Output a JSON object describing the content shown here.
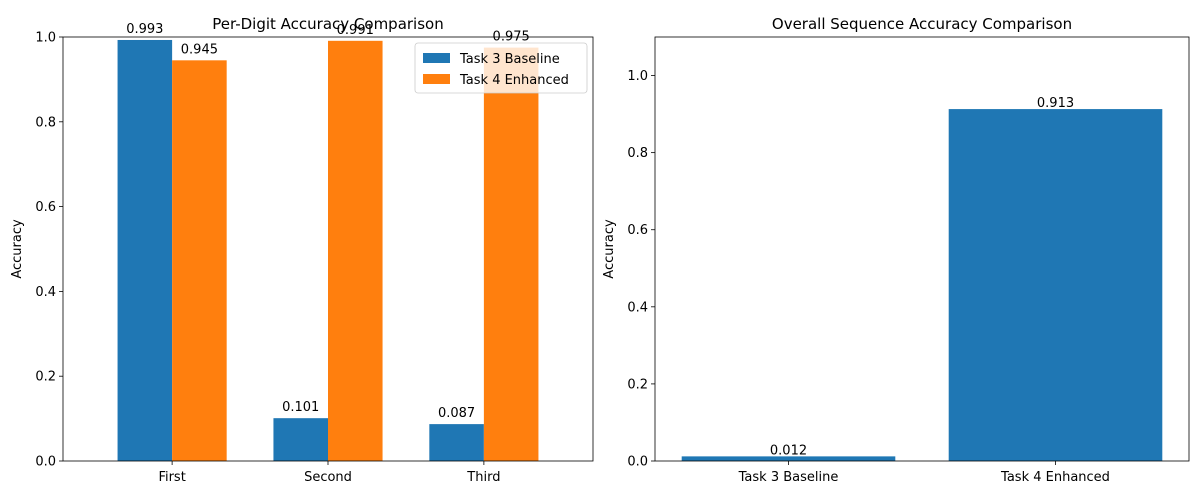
{
  "chart_data": [
    {
      "type": "bar",
      "title": "Per-Digit Accuracy Comparison",
      "xlabel": "",
      "ylabel": "Accuracy",
      "ylim": [
        0,
        1.0
      ],
      "yticks": [
        "0.0",
        "0.2",
        "0.4",
        "0.6",
        "0.8",
        "1.0"
      ],
      "categories": [
        "First",
        "Second",
        "Third"
      ],
      "series": [
        {
          "name": "Task 3 Baseline",
          "color": "#1f77b4",
          "values": [
            0.993,
            0.101,
            0.087
          ],
          "labels": [
            "0.993",
            "0.101",
            "0.087"
          ]
        },
        {
          "name": "Task 4 Enhanced",
          "color": "#ff7f0e",
          "values": [
            0.945,
            0.991,
            0.975
          ],
          "labels": [
            "0.945",
            "0.991",
            "0.975"
          ]
        }
      ],
      "legend": "top-right",
      "grid": false
    },
    {
      "type": "bar",
      "title": "Overall Sequence Accuracy Comparison",
      "xlabel": "",
      "ylabel": "Accuracy",
      "ylim": [
        0,
        1.1
      ],
      "yticks": [
        "0.0",
        "0.2",
        "0.4",
        "0.6",
        "0.8",
        "1.0"
      ],
      "categories": [
        "Task 3 Baseline",
        "Task 4 Enhanced"
      ],
      "values": [
        0.012,
        0.913
      ],
      "labels": [
        "0.012",
        "0.913"
      ],
      "color": "#1f77b4",
      "grid": false
    }
  ]
}
